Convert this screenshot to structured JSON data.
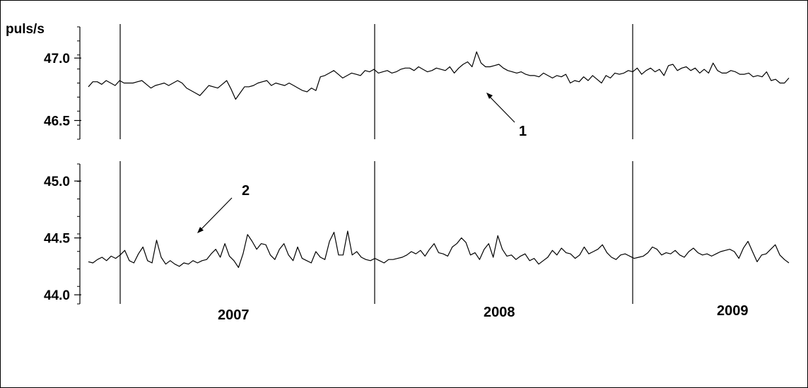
{
  "chart_data": {
    "type": "line",
    "colors": {
      "line": "#000000",
      "background": "#ffffff"
    },
    "ylabel": "puls/s",
    "year_labels": [
      "2007",
      "2008",
      "2009"
    ],
    "annotations": [
      "1",
      "2"
    ],
    "grid": false,
    "series": [
      {
        "annotation": "1",
        "ylim": [
          46.35,
          47.25
        ],
        "yticks": [
          46.5,
          47.0
        ],
        "ytick_labels": [
          "46.5",
          "47.0"
        ],
        "values": [
          46.77,
          46.81,
          46.81,
          46.79,
          46.82,
          46.8,
          46.78,
          46.82,
          46.8,
          46.8,
          46.8,
          46.81,
          46.82,
          46.79,
          46.76,
          46.78,
          46.79,
          46.8,
          46.78,
          46.8,
          46.82,
          46.8,
          46.76,
          46.74,
          46.72,
          46.7,
          46.74,
          46.78,
          46.77,
          46.76,
          46.79,
          46.82,
          46.75,
          46.67,
          46.72,
          46.77,
          46.77,
          46.78,
          46.8,
          46.81,
          46.82,
          46.78,
          46.8,
          46.79,
          46.78,
          46.8,
          46.78,
          46.76,
          46.74,
          46.73,
          46.76,
          46.74,
          46.85,
          46.86,
          46.88,
          46.9,
          46.87,
          46.84,
          46.86,
          46.88,
          46.87,
          46.86,
          46.9,
          46.89,
          46.91,
          46.88,
          46.89,
          46.9,
          46.88,
          46.89,
          46.91,
          46.92,
          46.92,
          46.9,
          46.93,
          46.91,
          46.89,
          46.9,
          46.92,
          46.91,
          46.9,
          46.93,
          46.88,
          46.92,
          46.95,
          46.97,
          46.93,
          47.05,
          46.96,
          46.93,
          46.93,
          46.94,
          46.95,
          46.92,
          46.9,
          46.89,
          46.88,
          46.89,
          46.87,
          46.86,
          46.86,
          46.85,
          46.88,
          46.86,
          46.84,
          46.86,
          46.85,
          46.87,
          46.8,
          46.82,
          46.81,
          46.85,
          46.82,
          46.86,
          46.83,
          46.8,
          46.86,
          46.84,
          46.88,
          46.87,
          46.88,
          46.9,
          46.89,
          46.92,
          46.87,
          46.9,
          46.92,
          46.89,
          46.91,
          46.86,
          46.94,
          46.95,
          46.9,
          46.92,
          46.93,
          46.9,
          46.92,
          46.88,
          46.91,
          46.88,
          46.96,
          46.9,
          46.88,
          46.88,
          46.9,
          46.89,
          46.87,
          46.87,
          46.88,
          46.85,
          46.86,
          46.85,
          46.89,
          46.82,
          46.83,
          46.8,
          46.8,
          46.84
        ]
      },
      {
        "annotation": "2",
        "ylim": [
          43.92,
          45.15
        ],
        "yticks": [
          44.0,
          44.5,
          45.0
        ],
        "ytick_labels": [
          "44.0",
          "44.5",
          "45.0"
        ],
        "values": [
          44.29,
          44.28,
          44.31,
          44.33,
          44.3,
          44.34,
          44.32,
          44.35,
          44.39,
          44.3,
          44.28,
          44.36,
          44.42,
          44.3,
          44.28,
          44.48,
          44.33,
          44.27,
          44.3,
          44.27,
          44.25,
          44.28,
          44.27,
          44.3,
          44.28,
          44.3,
          44.31,
          44.36,
          44.4,
          44.33,
          44.45,
          44.34,
          44.3,
          44.24,
          44.36,
          44.53,
          44.47,
          44.4,
          44.45,
          44.44,
          44.35,
          44.31,
          44.4,
          44.45,
          44.35,
          44.3,
          44.42,
          44.32,
          44.3,
          44.28,
          44.38,
          44.33,
          44.31,
          44.47,
          44.55,
          44.35,
          44.35,
          44.56,
          44.35,
          44.38,
          44.33,
          44.31,
          44.3,
          44.32,
          44.3,
          44.28,
          44.31,
          44.31,
          44.32,
          44.33,
          44.35,
          44.38,
          44.36,
          44.39,
          44.34,
          44.4,
          44.45,
          44.37,
          44.36,
          44.34,
          44.42,
          44.45,
          44.5,
          44.46,
          44.35,
          44.37,
          44.31,
          44.4,
          44.45,
          44.33,
          44.52,
          44.4,
          44.34,
          44.35,
          44.31,
          44.34,
          44.36,
          44.3,
          44.32,
          44.27,
          44.3,
          44.33,
          44.39,
          44.35,
          44.41,
          44.37,
          44.36,
          44.32,
          44.35,
          44.42,
          44.36,
          44.38,
          44.4,
          44.44,
          44.37,
          44.33,
          44.31,
          44.35,
          44.36,
          44.34,
          44.32,
          44.33,
          44.34,
          44.37,
          44.42,
          44.4,
          44.35,
          44.37,
          44.36,
          44.39,
          44.35,
          44.33,
          44.38,
          44.41,
          44.37,
          44.35,
          44.36,
          44.34,
          44.36,
          44.38,
          44.39,
          44.4,
          44.38,
          44.32,
          44.41,
          44.47,
          44.38,
          44.29,
          44.35,
          44.36,
          44.4,
          44.44,
          44.35,
          44.31,
          44.28
        ]
      }
    ]
  }
}
